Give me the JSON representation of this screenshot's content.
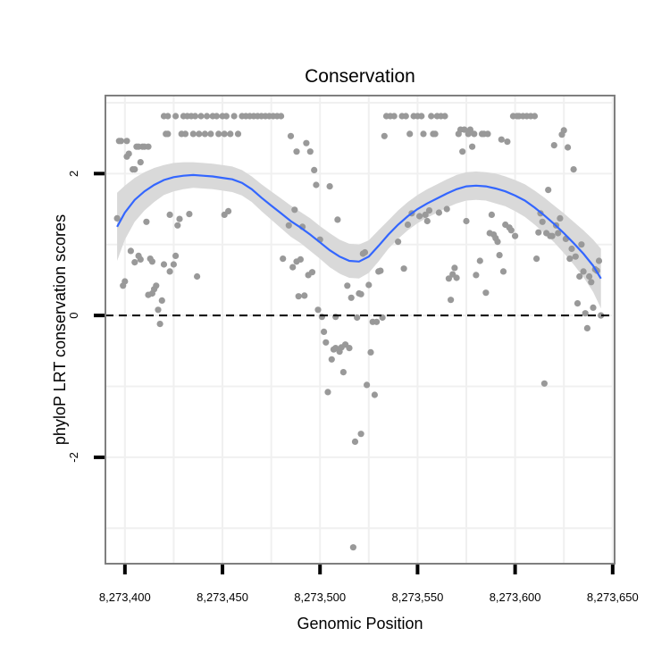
{
  "chart_data": {
    "type": "scatter",
    "title": "Conservation",
    "xlabel": "Genomic Position",
    "ylabel": "phyloP LRT conservation scores",
    "xlim": [
      8273390,
      8273651
    ],
    "ylim": [
      -3.5,
      3.1
    ],
    "x_ticks": [
      8273400,
      8273450,
      8273500,
      8273550,
      8273600,
      8273650
    ],
    "x_tick_labels": [
      "8,273,400",
      "8,273,450",
      "8,273,500",
      "8,273,550",
      "8,273,600",
      "8,273,650"
    ],
    "y_ticks": [
      -2,
      0,
      2
    ],
    "y_tick_labels": [
      "-2",
      "0",
      "2"
    ],
    "x_minor_gridlines": [
      8273425,
      8273475,
      8273525,
      8273575,
      8273625
    ],
    "y_minor_gridlines": [
      -3,
      -1,
      1,
      3
    ],
    "reference_line": {
      "y": 0,
      "style": "dashed"
    },
    "grid": true,
    "colors": {
      "points": "#999999",
      "smooth": "#3366ff",
      "ribbon": "#d9d9d9",
      "panel_border": "#7f7f7f",
      "grid": "#f0f0f0"
    },
    "points": [
      [
        8273396,
        1.37
      ],
      [
        8273397,
        2.46
      ],
      [
        8273398,
        2.46
      ],
      [
        8273399,
        0.42
      ],
      [
        8273400,
        0.48
      ],
      [
        8273401,
        2.24
      ],
      [
        8273401,
        2.46
      ],
      [
        8273402,
        2.28
      ],
      [
        8273403,
        0.91
      ],
      [
        8273404,
        2.06
      ],
      [
        8273405,
        0.75
      ],
      [
        8273405,
        2.06
      ],
      [
        8273406,
        2.38
      ],
      [
        8273407,
        0.84
      ],
      [
        8273407,
        2.38
      ],
      [
        8273408,
        0.79
      ],
      [
        8273408,
        2.16
      ],
      [
        8273409,
        2.38
      ],
      [
        8273410,
        2.38
      ],
      [
        8273411,
        1.32
      ],
      [
        8273412,
        2.38
      ],
      [
        8273412,
        0.29
      ],
      [
        8273413,
        0.8
      ],
      [
        8273414,
        0.31
      ],
      [
        8273414,
        0.76
      ],
      [
        8273415,
        0.37
      ],
      [
        8273416,
        0.42
      ],
      [
        8273417,
        0.08
      ],
      [
        8273418,
        -0.12
      ],
      [
        8273419,
        0.21
      ],
      [
        8273420,
        0.72
      ],
      [
        8273420,
        2.81
      ],
      [
        8273421,
        2.56
      ],
      [
        8273422,
        2.81
      ],
      [
        8273422,
        2.56
      ],
      [
        8273423,
        1.42
      ],
      [
        8273423,
        0.62
      ],
      [
        8273425,
        0.72
      ],
      [
        8273426,
        0.84
      ],
      [
        8273426,
        2.81
      ],
      [
        8273427,
        1.27
      ],
      [
        8273428,
        1.36
      ],
      [
        8273429,
        2.56
      ],
      [
        8273430,
        2.81
      ],
      [
        8273431,
        2.56
      ],
      [
        8273432,
        2.81
      ],
      [
        8273433,
        1.43
      ],
      [
        8273434,
        2.81
      ],
      [
        8273435,
        2.56
      ],
      [
        8273436,
        2.81
      ],
      [
        8273437,
        0.55
      ],
      [
        8273438,
        2.56
      ],
      [
        8273439,
        2.81
      ],
      [
        8273441,
        2.56
      ],
      [
        8273442,
        2.81
      ],
      [
        8273444,
        2.56
      ],
      [
        8273445,
        2.81
      ],
      [
        8273447,
        2.81
      ],
      [
        8273448,
        2.56
      ],
      [
        8273450,
        2.81
      ],
      [
        8273451,
        1.42
      ],
      [
        8273451,
        2.56
      ],
      [
        8273452,
        2.81
      ],
      [
        8273453,
        1.47
      ],
      [
        8273454,
        2.56
      ],
      [
        8273456,
        2.81
      ],
      [
        8273458,
        2.56
      ],
      [
        8273460,
        2.81
      ],
      [
        8273462,
        2.81
      ],
      [
        8273464,
        2.81
      ],
      [
        8273466,
        2.81
      ],
      [
        8273468,
        2.81
      ],
      [
        8273470,
        2.81
      ],
      [
        8273472,
        2.81
      ],
      [
        8273474,
        2.81
      ],
      [
        8273476,
        2.81
      ],
      [
        8273478,
        2.81
      ],
      [
        8273480,
        2.81
      ],
      [
        8273481,
        0.8
      ],
      [
        8273484,
        1.27
      ],
      [
        8273485,
        2.53
      ],
      [
        8273486,
        0.68
      ],
      [
        8273487,
        1.49
      ],
      [
        8273488,
        2.31
      ],
      [
        8273488,
        0.76
      ],
      [
        8273489,
        0.27
      ],
      [
        8273490,
        0.79
      ],
      [
        8273491,
        1.25
      ],
      [
        8273492,
        0.28
      ],
      [
        8273493,
        2.43
      ],
      [
        8273494,
        0.57
      ],
      [
        8273495,
        2.31
      ],
      [
        8273496,
        0.61
      ],
      [
        8273497,
        2.05
      ],
      [
        8273498,
        1.84
      ],
      [
        8273499,
        0.08
      ],
      [
        8273500,
        1.07
      ],
      [
        8273501,
        -0.02
      ],
      [
        8273502,
        -0.23
      ],
      [
        8273503,
        -0.38
      ],
      [
        8273504,
        -1.08
      ],
      [
        8273505,
        1.82
      ],
      [
        8273506,
        -0.62
      ],
      [
        8273507,
        -0.48
      ],
      [
        8273508,
        -0.46
      ],
      [
        8273508,
        -0.02
      ],
      [
        8273509,
        1.35
      ],
      [
        8273510,
        -0.51
      ],
      [
        8273511,
        -0.45
      ],
      [
        8273512,
        -0.8
      ],
      [
        8273513,
        -0.41
      ],
      [
        8273514,
        0.42
      ],
      [
        8273515,
        -0.46
      ],
      [
        8273516,
        0.25
      ],
      [
        8273517,
        -3.27
      ],
      [
        8273518,
        -1.78
      ],
      [
        8273519,
        -0.03
      ],
      [
        8273520,
        0.31
      ],
      [
        8273521,
        -1.67
      ],
      [
        8273521,
        0.3
      ],
      [
        8273522,
        0.87
      ],
      [
        8273523,
        0.89
      ],
      [
        8273524,
        -0.98
      ],
      [
        8273525,
        0.43
      ],
      [
        8273526,
        -0.52
      ],
      [
        8273527,
        -0.09
      ],
      [
        8273528,
        -1.12
      ],
      [
        8273529,
        -0.09
      ],
      [
        8273530,
        0.62
      ],
      [
        8273531,
        0.63
      ],
      [
        8273532,
        -0.03
      ],
      [
        8273533,
        2.53
      ],
      [
        8273534,
        2.81
      ],
      [
        8273536,
        2.81
      ],
      [
        8273538,
        2.81
      ],
      [
        8273540,
        1.04
      ],
      [
        8273542,
        2.81
      ],
      [
        8273543,
        0.66
      ],
      [
        8273544,
        2.81
      ],
      [
        8273545,
        1.28
      ],
      [
        8273546,
        2.56
      ],
      [
        8273547,
        1.44
      ],
      [
        8273548,
        2.81
      ],
      [
        8273550,
        2.81
      ],
      [
        8273551,
        1.4
      ],
      [
        8273552,
        2.81
      ],
      [
        8273553,
        2.56
      ],
      [
        8273554,
        1.42
      ],
      [
        8273555,
        1.33
      ],
      [
        8273556,
        1.48
      ],
      [
        8273557,
        2.81
      ],
      [
        8273558,
        2.56
      ],
      [
        8273559,
        2.56
      ],
      [
        8273560,
        2.81
      ],
      [
        8273561,
        1.45
      ],
      [
        8273562,
        2.81
      ],
      [
        8273564,
        2.81
      ],
      [
        8273565,
        1.5
      ],
      [
        8273566,
        0.52
      ],
      [
        8273567,
        0.22
      ],
      [
        8273568,
        0.58
      ],
      [
        8273569,
        0.67
      ],
      [
        8273570,
        0.53
      ],
      [
        8273571,
        2.56
      ],
      [
        8273572,
        2.62
      ],
      [
        8273573,
        2.31
      ],
      [
        8273574,
        2.62
      ],
      [
        8273575,
        1.33
      ],
      [
        8273576,
        2.56
      ],
      [
        8273577,
        2.62
      ],
      [
        8273578,
        2.38
      ],
      [
        8273579,
        2.56
      ],
      [
        8273580,
        0.57
      ],
      [
        8273582,
        0.77
      ],
      [
        8273583,
        2.56
      ],
      [
        8273584,
        2.56
      ],
      [
        8273585,
        0.32
      ],
      [
        8273586,
        2.56
      ],
      [
        8273587,
        1.16
      ],
      [
        8273588,
        1.42
      ],
      [
        8273589,
        1.14
      ],
      [
        8273590,
        1.09
      ],
      [
        8273591,
        1.04
      ],
      [
        8273592,
        0.85
      ],
      [
        8273593,
        2.48
      ],
      [
        8273594,
        0.62
      ],
      [
        8273595,
        1.28
      ],
      [
        8273596,
        2.45
      ],
      [
        8273597,
        1.24
      ],
      [
        8273598,
        1.2
      ],
      [
        8273599,
        2.81
      ],
      [
        8273600,
        1.12
      ],
      [
        8273601,
        2.81
      ],
      [
        8273602,
        2.81
      ],
      [
        8273604,
        2.81
      ],
      [
        8273606,
        2.81
      ],
      [
        8273608,
        2.81
      ],
      [
        8273610,
        2.81
      ],
      [
        8273611,
        0.8
      ],
      [
        8273612,
        1.17
      ],
      [
        8273613,
        1.44
      ],
      [
        8273614,
        1.32
      ],
      [
        8273615,
        -0.96
      ],
      [
        8273616,
        1.16
      ],
      [
        8273617,
        1.77
      ],
      [
        8273618,
        1.12
      ],
      [
        8273619,
        1.12
      ],
      [
        8273620,
        2.4
      ],
      [
        8273621,
        1.27
      ],
      [
        8273622,
        1.16
      ],
      [
        8273623,
        1.37
      ],
      [
        8273624,
        2.55
      ],
      [
        8273625,
        2.61
      ],
      [
        8273626,
        1.08
      ],
      [
        8273627,
        2.37
      ],
      [
        8273628,
        0.8
      ],
      [
        8273629,
        0.94
      ],
      [
        8273630,
        2.06
      ],
      [
        8273631,
        0.83
      ],
      [
        8273632,
        0.17
      ],
      [
        8273633,
        0.55
      ],
      [
        8273634,
        1.0
      ],
      [
        8273635,
        0.62
      ],
      [
        8273636,
        0.03
      ],
      [
        8273637,
        -0.18
      ],
      [
        8273638,
        0.55
      ],
      [
        8273639,
        0.47
      ],
      [
        8273640,
        0.11
      ],
      [
        8273641,
        0.65
      ],
      [
        8273642,
        0.63
      ],
      [
        8273643,
        0.77
      ],
      [
        8273644,
        0.0
      ]
    ],
    "smooth": [
      [
        8273396,
        1.25
      ],
      [
        8273400,
        1.45
      ],
      [
        8273405,
        1.63
      ],
      [
        8273410,
        1.75
      ],
      [
        8273415,
        1.84
      ],
      [
        8273420,
        1.91
      ],
      [
        8273425,
        1.95
      ],
      [
        8273430,
        1.97
      ],
      [
        8273435,
        1.98
      ],
      [
        8273440,
        1.97
      ],
      [
        8273445,
        1.96
      ],
      [
        8273450,
        1.94
      ],
      [
        8273455,
        1.92
      ],
      [
        8273460,
        1.87
      ],
      [
        8273465,
        1.78
      ],
      [
        8273470,
        1.66
      ],
      [
        8273475,
        1.55
      ],
      [
        8273480,
        1.44
      ],
      [
        8273485,
        1.33
      ],
      [
        8273490,
        1.24
      ],
      [
        8273495,
        1.14
      ],
      [
        8273500,
        1.03
      ],
      [
        8273505,
        0.92
      ],
      [
        8273510,
        0.83
      ],
      [
        8273515,
        0.77
      ],
      [
        8273520,
        0.76
      ],
      [
        8273525,
        0.83
      ],
      [
        8273530,
        0.98
      ],
      [
        8273535,
        1.14
      ],
      [
        8273540,
        1.28
      ],
      [
        8273545,
        1.4
      ],
      [
        8273550,
        1.5
      ],
      [
        8273555,
        1.58
      ],
      [
        8273560,
        1.65
      ],
      [
        8273565,
        1.72
      ],
      [
        8273570,
        1.78
      ],
      [
        8273575,
        1.82
      ],
      [
        8273580,
        1.83
      ],
      [
        8273585,
        1.82
      ],
      [
        8273590,
        1.79
      ],
      [
        8273595,
        1.75
      ],
      [
        8273600,
        1.69
      ],
      [
        8273605,
        1.62
      ],
      [
        8273610,
        1.52
      ],
      [
        8273615,
        1.41
      ],
      [
        8273620,
        1.29
      ],
      [
        8273625,
        1.16
      ],
      [
        8273630,
        1.02
      ],
      [
        8273635,
        0.87
      ],
      [
        8273640,
        0.7
      ],
      [
        8273644,
        0.52
      ]
    ],
    "smooth_upper": [
      [
        8273396,
        1.73
      ],
      [
        8273400,
        1.83
      ],
      [
        8273405,
        1.94
      ],
      [
        8273410,
        2.02
      ],
      [
        8273415,
        2.08
      ],
      [
        8273420,
        2.12
      ],
      [
        8273425,
        2.15
      ],
      [
        8273430,
        2.16
      ],
      [
        8273435,
        2.16
      ],
      [
        8273440,
        2.15
      ],
      [
        8273445,
        2.14
      ],
      [
        8273450,
        2.12
      ],
      [
        8273455,
        2.1
      ],
      [
        8273460,
        2.05
      ],
      [
        8273465,
        1.96
      ],
      [
        8273470,
        1.85
      ],
      [
        8273475,
        1.75
      ],
      [
        8273480,
        1.65
      ],
      [
        8273485,
        1.55
      ],
      [
        8273490,
        1.46
      ],
      [
        8273495,
        1.37
      ],
      [
        8273500,
        1.26
      ],
      [
        8273505,
        1.16
      ],
      [
        8273510,
        1.07
      ],
      [
        8273515,
        1.01
      ],
      [
        8273520,
        1.0
      ],
      [
        8273525,
        1.06
      ],
      [
        8273530,
        1.2
      ],
      [
        8273535,
        1.34
      ],
      [
        8273540,
        1.48
      ],
      [
        8273545,
        1.6
      ],
      [
        8273550,
        1.7
      ],
      [
        8273555,
        1.78
      ],
      [
        8273560,
        1.85
      ],
      [
        8273565,
        1.92
      ],
      [
        8273570,
        1.98
      ],
      [
        8273575,
        2.02
      ],
      [
        8273580,
        2.03
      ],
      [
        8273585,
        2.02
      ],
      [
        8273590,
        2.0
      ],
      [
        8273595,
        1.96
      ],
      [
        8273600,
        1.91
      ],
      [
        8273605,
        1.85
      ],
      [
        8273610,
        1.76
      ],
      [
        8273615,
        1.66
      ],
      [
        8273620,
        1.55
      ],
      [
        8273625,
        1.44
      ],
      [
        8273630,
        1.32
      ],
      [
        8273635,
        1.2
      ],
      [
        8273640,
        1.07
      ],
      [
        8273644,
        0.94
      ]
    ],
    "smooth_lower": [
      [
        8273396,
        0.77
      ],
      [
        8273400,
        1.07
      ],
      [
        8273405,
        1.32
      ],
      [
        8273410,
        1.48
      ],
      [
        8273415,
        1.6
      ],
      [
        8273420,
        1.7
      ],
      [
        8273425,
        1.75
      ],
      [
        8273430,
        1.78
      ],
      [
        8273435,
        1.8
      ],
      [
        8273440,
        1.79
      ],
      [
        8273445,
        1.78
      ],
      [
        8273450,
        1.76
      ],
      [
        8273455,
        1.74
      ],
      [
        8273460,
        1.69
      ],
      [
        8273465,
        1.6
      ],
      [
        8273470,
        1.47
      ],
      [
        8273475,
        1.35
      ],
      [
        8273480,
        1.23
      ],
      [
        8273485,
        1.11
      ],
      [
        8273490,
        1.02
      ],
      [
        8273495,
        0.91
      ],
      [
        8273500,
        0.8
      ],
      [
        8273505,
        0.68
      ],
      [
        8273510,
        0.59
      ],
      [
        8273515,
        0.53
      ],
      [
        8273520,
        0.52
      ],
      [
        8273525,
        0.6
      ],
      [
        8273530,
        0.76
      ],
      [
        8273535,
        0.94
      ],
      [
        8273540,
        1.08
      ],
      [
        8273545,
        1.2
      ],
      [
        8273550,
        1.3
      ],
      [
        8273555,
        1.38
      ],
      [
        8273560,
        1.45
      ],
      [
        8273565,
        1.52
      ],
      [
        8273570,
        1.58
      ],
      [
        8273575,
        1.62
      ],
      [
        8273580,
        1.63
      ],
      [
        8273585,
        1.62
      ],
      [
        8273590,
        1.58
      ],
      [
        8273595,
        1.54
      ],
      [
        8273600,
        1.47
      ],
      [
        8273605,
        1.39
      ],
      [
        8273610,
        1.28
      ],
      [
        8273615,
        1.16
      ],
      [
        8273620,
        1.03
      ],
      [
        8273625,
        0.88
      ],
      [
        8273630,
        0.72
      ],
      [
        8273635,
        0.54
      ],
      [
        8273640,
        0.33
      ],
      [
        8273644,
        0.1
      ]
    ]
  }
}
